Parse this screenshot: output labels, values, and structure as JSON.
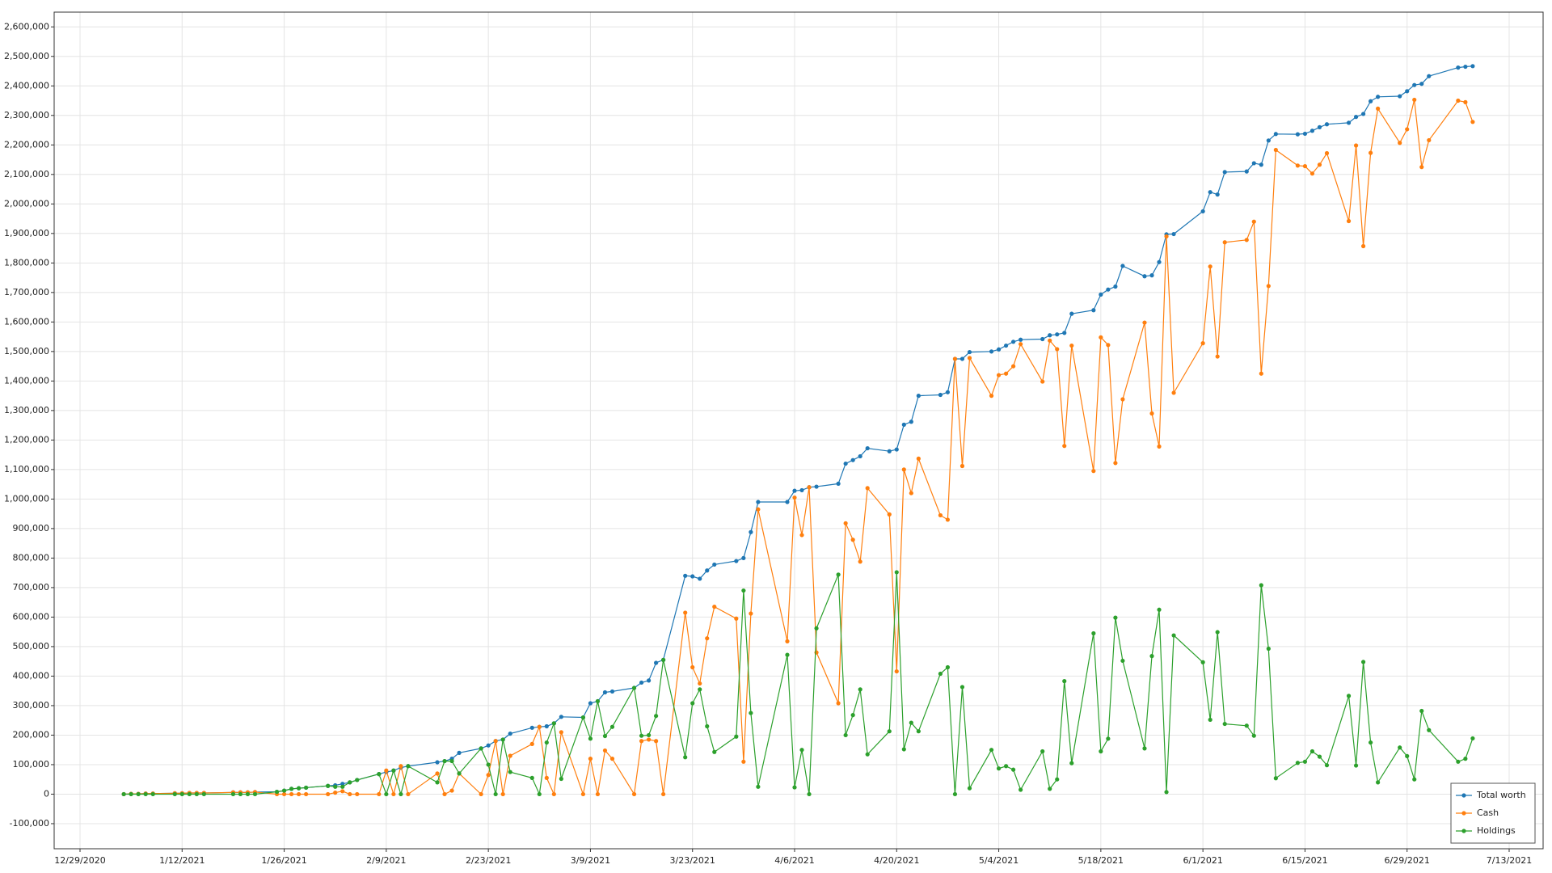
{
  "chart_data": {
    "type": "line",
    "x": [
      "1/4/2021",
      "1/5/2021",
      "1/6/2021",
      "1/7/2021",
      "1/8/2021",
      "1/11/2021",
      "1/12/2021",
      "1/13/2021",
      "1/14/2021",
      "1/15/2021",
      "1/19/2021",
      "1/20/2021",
      "1/21/2021",
      "1/22/2021",
      "1/25/2021",
      "1/26/2021",
      "1/27/2021",
      "1/28/2021",
      "1/29/2021",
      "2/1/2021",
      "2/2/2021",
      "2/3/2021",
      "2/4/2021",
      "2/5/2021",
      "2/8/2021",
      "2/9/2021",
      "2/10/2021",
      "2/11/2021",
      "2/12/2021",
      "2/16/2021",
      "2/17/2021",
      "2/18/2021",
      "2/19/2021",
      "2/22/2021",
      "2/23/2021",
      "2/24/2021",
      "2/25/2021",
      "2/26/2021",
      "3/1/2021",
      "3/2/2021",
      "3/3/2021",
      "3/4/2021",
      "3/5/2021",
      "3/8/2021",
      "3/9/2021",
      "3/10/2021",
      "3/11/2021",
      "3/12/2021",
      "3/15/2021",
      "3/16/2021",
      "3/17/2021",
      "3/18/2021",
      "3/19/2021",
      "3/22/2021",
      "3/23/2021",
      "3/24/2021",
      "3/25/2021",
      "3/26/2021",
      "3/29/2021",
      "3/30/2021",
      "3/31/2021",
      "4/1/2021",
      "4/5/2021",
      "4/6/2021",
      "4/7/2021",
      "4/8/2021",
      "4/9/2021",
      "4/12/2021",
      "4/13/2021",
      "4/14/2021",
      "4/15/2021",
      "4/16/2021",
      "4/19/2021",
      "4/20/2021",
      "4/21/2021",
      "4/22/2021",
      "4/23/2021",
      "4/26/2021",
      "4/27/2021",
      "4/28/2021",
      "4/29/2021",
      "4/30/2021",
      "5/3/2021",
      "5/4/2021",
      "5/5/2021",
      "5/6/2021",
      "5/7/2021",
      "5/10/2021",
      "5/11/2021",
      "5/12/2021",
      "5/13/2021",
      "5/14/2021",
      "5/17/2021",
      "5/18/2021",
      "5/19/2021",
      "5/20/2021",
      "5/21/2021",
      "5/24/2021",
      "5/25/2021",
      "5/26/2021",
      "5/27/2021",
      "5/28/2021",
      "6/1/2021",
      "6/2/2021",
      "6/3/2021",
      "6/4/2021",
      "6/7/2021",
      "6/8/2021",
      "6/9/2021",
      "6/10/2021",
      "6/11/2021",
      "6/14/2021",
      "6/15/2021",
      "6/16/2021",
      "6/17/2021",
      "6/18/2021",
      "6/21/2021",
      "6/22/2021",
      "6/23/2021",
      "6/24/2021",
      "6/25/2021",
      "6/28/2021",
      "6/29/2021",
      "6/30/2021",
      "7/1/2021",
      "7/2/2021",
      "7/6/2021",
      "7/7/2021",
      "7/8/2021"
    ],
    "series": [
      {
        "name": "Total worth",
        "color": "#1f77b4",
        "values": [
          0,
          1000,
          1000,
          2000,
          2000,
          3000,
          3000,
          4000,
          4000,
          4000,
          6000,
          6000,
          6000,
          7000,
          8000,
          12000,
          18000,
          20000,
          22000,
          28000,
          30000,
          35000,
          40000,
          48000,
          68000,
          75000,
          80000,
          90000,
          95000,
          108000,
          112000,
          120000,
          140000,
          155000,
          165000,
          180000,
          185000,
          205000,
          225000,
          228000,
          230000,
          240000,
          262000,
          260000,
          308000,
          315000,
          345000,
          348000,
          360000,
          378000,
          385000,
          445000,
          455000,
          740000,
          738000,
          730000,
          758000,
          778000,
          790000,
          800000,
          888000,
          990000,
          990000,
          1028000,
          1030000,
          1040000,
          1042000,
          1052000,
          1120000,
          1132000,
          1145000,
          1172000,
          1162000,
          1168000,
          1252000,
          1262000,
          1350000,
          1353000,
          1362000,
          1475000,
          1475000,
          1498000,
          1500000,
          1507000,
          1520000,
          1533000,
          1540000,
          1542000,
          1555000,
          1558000,
          1563000,
          1628000,
          1640000,
          1693000,
          1710000,
          1720000,
          1790000,
          1755000,
          1758000,
          1803000,
          1897000,
          1898000,
          1975000,
          2040000,
          2032000,
          2108000,
          2110000,
          2138000,
          2133000,
          2215000,
          2237000,
          2236000,
          2238000,
          2248000,
          2260000,
          2270000,
          2275000,
          2295000,
          2305000,
          2348000,
          2363000,
          2365000,
          2382000,
          2403000,
          2407000,
          2433000,
          2462000,
          2465000,
          2467000
        ]
      },
      {
        "name": "Cash",
        "color": "#ff7f0e",
        "values": [
          0,
          1000,
          1000,
          2000,
          2000,
          3000,
          3000,
          4000,
          4000,
          4000,
          6000,
          6000,
          6000,
          7000,
          0,
          0,
          0,
          0,
          0,
          0,
          5000,
          10000,
          0,
          0,
          0,
          80000,
          0,
          95000,
          0,
          70000,
          0,
          12000,
          70000,
          0,
          65000,
          180000,
          0,
          130000,
          170000,
          228000,
          55000,
          0,
          210000,
          0,
          120000,
          0,
          148000,
          120000,
          0,
          180000,
          185000,
          180000,
          0,
          615000,
          430000,
          375000,
          528000,
          635000,
          595000,
          110000,
          612000,
          965000,
          518000,
          1005000,
          878000,
          1040000,
          480000,
          308000,
          918000,
          862000,
          788000,
          1037000,
          948000,
          416000,
          1100000,
          1020000,
          1137000,
          945000,
          930000,
          1475000,
          1112000,
          1478000,
          1350000,
          1420000,
          1425000,
          1450000,
          1525000,
          1398000,
          1537000,
          1508000,
          1180000,
          1520000,
          1095000,
          1548000,
          1522000,
          1122000,
          1338000,
          1598000,
          1290000,
          1178000,
          1890000,
          1360000,
          1528000,
          1788000,
          1483000,
          1870000,
          1878000,
          1940000,
          1425000,
          1722000,
          2183000,
          2130000,
          2128000,
          2103000,
          2133000,
          2172000,
          1942000,
          2198000,
          1857000,
          2173000,
          2323000,
          2207000,
          2253000,
          2353000,
          2125000,
          2216000,
          2350000,
          2345000,
          2278000
        ]
      },
      {
        "name": "Holdings",
        "color": "#2ca02c",
        "values": [
          0,
          0,
          0,
          0,
          0,
          0,
          0,
          0,
          0,
          0,
          0,
          0,
          0,
          0,
          8000,
          12000,
          18000,
          20000,
          22000,
          28000,
          25000,
          25000,
          40000,
          48000,
          68000,
          0,
          80000,
          0,
          95000,
          40000,
          112000,
          112000,
          70000,
          155000,
          100000,
          0,
          185000,
          75000,
          55000,
          0,
          175000,
          240000,
          52000,
          260000,
          188000,
          315000,
          197000,
          228000,
          360000,
          198000,
          200000,
          265000,
          455000,
          125000,
          308000,
          355000,
          230000,
          143000,
          195000,
          690000,
          275000,
          25000,
          472000,
          23000,
          150000,
          0,
          562000,
          744000,
          200000,
          268000,
          355000,
          135000,
          213000,
          752000,
          152000,
          242000,
          213000,
          408000,
          430000,
          0,
          363000,
          20000,
          150000,
          87000,
          95000,
          83000,
          15000,
          145000,
          18000,
          50000,
          383000,
          105000,
          545000,
          145000,
          188000,
          598000,
          452000,
          155000,
          468000,
          625000,
          7000,
          538000,
          447000,
          252000,
          549000,
          238000,
          232000,
          198000,
          708000,
          493000,
          54000,
          106000,
          110000,
          145000,
          127000,
          98000,
          333000,
          97000,
          448000,
          175000,
          40000,
          158000,
          129000,
          50000,
          282000,
          217000,
          110000,
          120000,
          189000
        ]
      }
    ],
    "xlim": [
      "12/29/2020",
      "7/13/2021"
    ],
    "xticks": [
      "12/29/2020",
      "1/12/2021",
      "1/26/2021",
      "2/9/2021",
      "2/23/2021",
      "3/9/2021",
      "3/23/2021",
      "4/6/2021",
      "4/20/2021",
      "5/4/2021",
      "5/18/2021",
      "6/1/2021",
      "6/15/2021",
      "6/29/2021",
      "7/13/2021"
    ],
    "ylim": [
      -185000,
      2650000
    ],
    "yticks": [
      {
        "value": -100000,
        "label": "-100,000"
      },
      0,
      {
        "value": 100000,
        "label": "100,000"
      },
      {
        "value": 200000,
        "label": "200,000"
      },
      {
        "value": 300000,
        "label": "300,000"
      },
      {
        "value": 400000,
        "label": "400,000"
      },
      {
        "value": 500000,
        "label": "500,000"
      },
      {
        "value": 600000,
        "label": "600,000"
      },
      {
        "value": 700000,
        "label": "700,000"
      },
      {
        "value": 800000,
        "label": "800,000"
      },
      {
        "value": 900000,
        "label": "900,000"
      },
      {
        "value": 1000000,
        "label": "1,000,000"
      },
      {
        "value": 1100000,
        "label": "1,100,000"
      },
      {
        "value": 1200000,
        "label": "1,200,000"
      },
      {
        "value": 1300000,
        "label": "1,300,000"
      },
      {
        "value": 1400000,
        "label": "1,400,000"
      },
      {
        "value": 1500000,
        "label": "1,500,000"
      },
      {
        "value": 1600000,
        "label": "1,600,000"
      },
      {
        "value": 1700000,
        "label": "1,700,000"
      },
      {
        "value": 1800000,
        "label": "1,800,000"
      },
      {
        "value": 1900000,
        "label": "1,900,000"
      },
      {
        "value": 2000000,
        "label": "2,000,000"
      },
      {
        "value": 2100000,
        "label": "2,100,000"
      },
      {
        "value": 2200000,
        "label": "2,200,000"
      },
      {
        "value": 2300000,
        "label": "2,300,000"
      },
      {
        "value": 2400000,
        "label": "2,400,000"
      },
      {
        "value": 2500000,
        "label": "2,500,000"
      },
      {
        "value": 2600000,
        "label": "2,600,000"
      }
    ],
    "grid": true,
    "legend": "lower right",
    "markers": true
  }
}
